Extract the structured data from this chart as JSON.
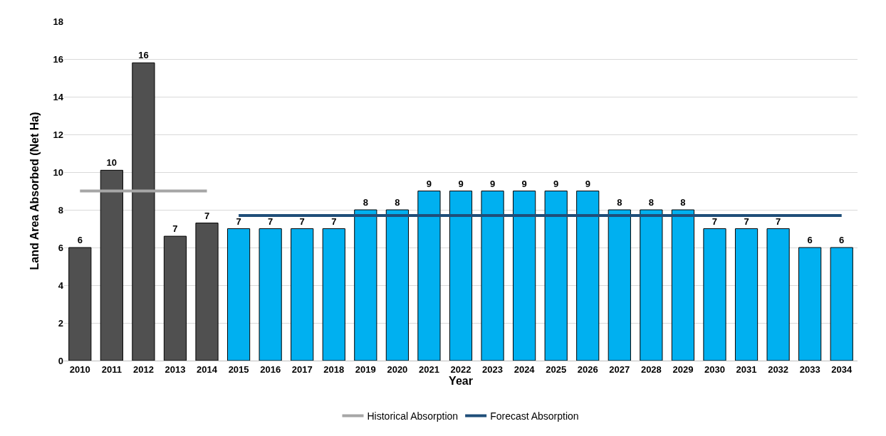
{
  "chart_data": {
    "type": "bar",
    "xlabel": "Year",
    "ylabel": "Land Area Absorbed (Net Ha)",
    "categories": [
      "2010",
      "2011",
      "2012",
      "2013",
      "2014",
      "2015",
      "2016",
      "2017",
      "2018",
      "2019",
      "2020",
      "2021",
      "2022",
      "2023",
      "2024",
      "2025",
      "2026",
      "2027",
      "2028",
      "2029",
      "2030",
      "2031",
      "2032",
      "2033",
      "2034"
    ],
    "series": [
      {
        "colors": [
          "#505050",
          "#505050",
          "#505050",
          "#505050",
          "#505050",
          "#00b0f0",
          "#00b0f0",
          "#00b0f0",
          "#00b0f0",
          "#00b0f0",
          "#00b0f0",
          "#00b0f0",
          "#00b0f0",
          "#00b0f0",
          "#00b0f0",
          "#00b0f0",
          "#00b0f0",
          "#00b0f0",
          "#00b0f0",
          "#00b0f0",
          "#00b0f0",
          "#00b0f0",
          "#00b0f0",
          "#00b0f0",
          "#00b0f0"
        ],
        "values": [
          6.0,
          10.1,
          15.8,
          6.6,
          7.3,
          7,
          7,
          7,
          7,
          8,
          8,
          9,
          9,
          9,
          9,
          9,
          9,
          8,
          8,
          8,
          7,
          7,
          7,
          6,
          6
        ],
        "value_labels": [
          "6",
          "10",
          "16",
          "7",
          "7",
          "7",
          "7",
          "7",
          "7",
          "8",
          "8",
          "9",
          "9",
          "9",
          "9",
          "9",
          "9",
          "8",
          "8",
          "8",
          "7",
          "7",
          "7",
          "6",
          "6"
        ]
      },
      {
        "type": "line",
        "name": "Historical Absorption",
        "color": "#a6a6a6",
        "values": [
          9.0,
          9.0,
          9.0,
          9.0,
          9.0,
          null,
          null,
          null,
          null,
          null,
          null,
          null,
          null,
          null,
          null,
          null,
          null,
          null,
          null,
          null,
          null,
          null,
          null,
          null,
          null
        ]
      },
      {
        "type": "line",
        "name": "Forecast Absorption",
        "color": "#1f4e79",
        "values": [
          null,
          null,
          null,
          null,
          null,
          7.7,
          7.7,
          7.7,
          7.7,
          7.7,
          7.7,
          7.7,
          7.7,
          7.7,
          7.7,
          7.7,
          7.7,
          7.7,
          7.7,
          7.7,
          7.7,
          7.7,
          7.7,
          7.7,
          7.7
        ]
      }
    ],
    "ylim": [
      0,
      18
    ],
    "yticks": [
      0,
      2,
      4,
      6,
      8,
      10,
      12,
      14,
      16,
      18
    ],
    "grid": "y",
    "legend": "bottom"
  }
}
